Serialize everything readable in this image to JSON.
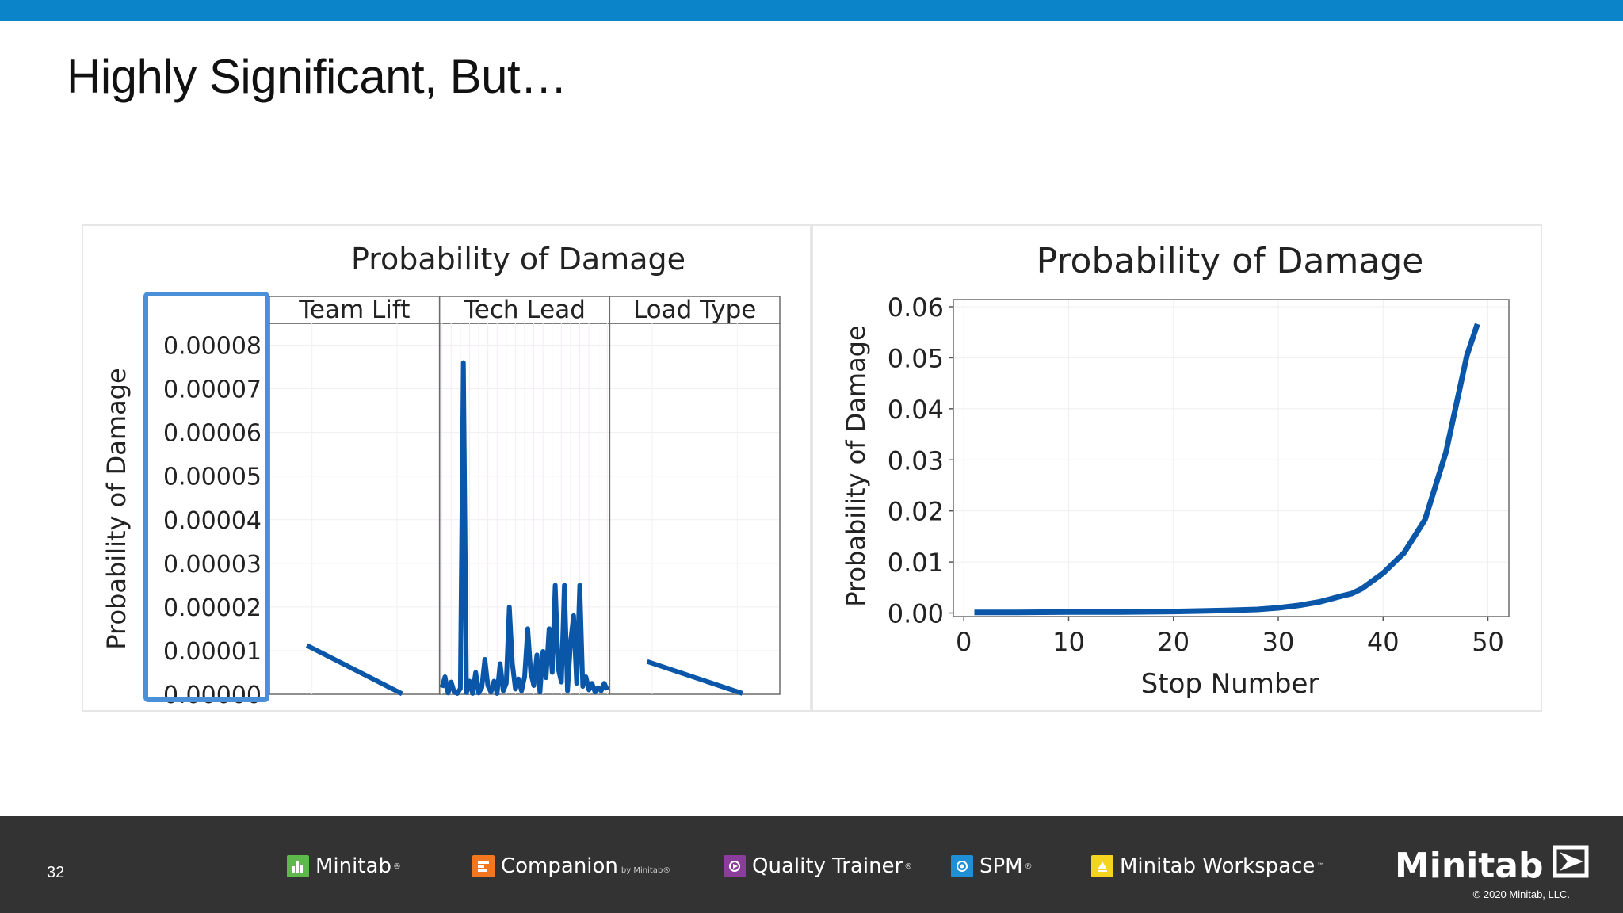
{
  "slide": {
    "title": "Highly Significant, But…",
    "page_number": "32",
    "accent_color": "#0b84c9"
  },
  "footer": {
    "products": [
      {
        "name": "Minitab",
        "mark": "®",
        "icon": "minitab-bar-chart-icon",
        "color": "#5db94a"
      },
      {
        "name": "Companion",
        "by": "by Minitab®",
        "icon": "companion-icon",
        "color": "#f2771f"
      },
      {
        "name": "Quality Trainer",
        "mark": "®",
        "icon": "quality-trainer-icon",
        "color": "#8a3d9b"
      },
      {
        "name": "SPM",
        "mark": "®",
        "icon": "spm-icon",
        "color": "#1f8fd6"
      },
      {
        "name": "Minitab Workspace",
        "mark": "™",
        "icon": "workspace-icon",
        "color": "#f5d41f"
      }
    ],
    "brand": "Minitab",
    "copyright": "© 2020 Minitab, LLC."
  },
  "chart_data": [
    {
      "type": "line",
      "title": "Probability of  Damage",
      "ylabel": "Probability of Damage",
      "ylim": [
        0,
        8.5e-05
      ],
      "yticks": [
        "0.00000",
        "0.00001",
        "0.00002",
        "0.00003",
        "0.00004",
        "0.00005",
        "0.00006",
        "0.00007",
        "0.00008"
      ],
      "highlight": {
        "target": "y-axis tick labels",
        "color": "#4a90d9"
      },
      "line_color": "#0a56a8",
      "panels": [
        {
          "name": "Team Lift",
          "values": [
            1.12e-05,
            1e-07
          ]
        },
        {
          "name": "Tech Lead",
          "values": [
            1.5e-06,
            4e-06,
            3e-07,
            2.8e-06,
            5e-07,
            2e-07,
            1.3e-06,
            7.6e-05,
            4e-07,
            3e-06,
            2e-07,
            5e-06,
            3e-07,
            1.5e-06,
            8e-06,
            2e-06,
            5e-07,
            3e-06,
            2e-07,
            7e-06,
            8e-07,
            2.5e-06,
            2e-05,
            7e-06,
            1.2e-06,
            3.5e-06,
            8e-07,
            4e-06,
            1.5e-05,
            5e-06,
            2e-06,
            9e-06,
            5e-07,
            9.8e-06,
            3.8e-06,
            1.5e-05,
            5e-06,
            2.5e-05,
            5.8e-06,
            2.8e-06,
            2.5e-05,
            8e-07,
            1.2e-05,
            1.8e-05,
            2.5e-06,
            2.5e-05,
            1.8e-06,
            4e-06,
            1e-06,
            2.5e-06,
            5e-07,
            1.5e-06,
            8e-07,
            2.5e-06,
            1e-06
          ]
        },
        {
          "name": "Load Type",
          "values": [
            7.5e-06,
            2e-07
          ]
        }
      ]
    },
    {
      "type": "line",
      "title": "Probability of Damage",
      "xlabel": "Stop Number",
      "ylabel": "Probability of Damage",
      "xlim": [
        -1,
        52
      ],
      "ylim": [
        -0.0007,
        0.0614
      ],
      "xticks": [
        0,
        10,
        20,
        30,
        40,
        50
      ],
      "yticks": [
        "0.00",
        "0.01",
        "0.02",
        "0.03",
        "0.04",
        "0.05",
        "0.06"
      ],
      "line_color": "#0a56a8",
      "x": [
        1,
        5,
        10,
        15,
        20,
        25,
        28,
        30,
        32,
        34,
        36,
        37,
        38,
        40,
        42,
        44,
        46,
        48,
        49
      ],
      "y": [
        0.0001,
        0.0001,
        0.0002,
        0.0002,
        0.0003,
        0.0005,
        0.0007,
        0.001,
        0.0015,
        0.0022,
        0.0033,
        0.0038,
        0.0048,
        0.0078,
        0.0118,
        0.0183,
        0.0315,
        0.0505,
        0.0566
      ]
    }
  ]
}
